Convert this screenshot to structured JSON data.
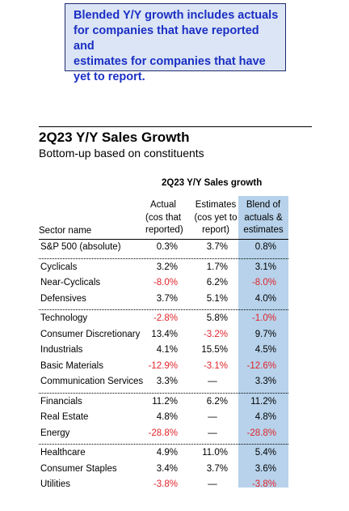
{
  "callout": {
    "lines": [
      "Blended Y/Y growth includes actuals",
      "for companies that have reported and",
      "estimates for companies that have",
      "yet to report."
    ]
  },
  "title": "2Q23 Y/Y Sales Growth",
  "subtitle": "Bottom-up based on constituents",
  "table": {
    "title": "2Q23 Y/Y Sales growth",
    "headers": {
      "sector": "Sector name",
      "actual": [
        "Actual",
        "(cos that",
        "reported)"
      ],
      "estimates": [
        "Estimates",
        "(cos yet to",
        "report)"
      ],
      "blend": [
        "Blend of",
        "actuals &",
        "estimates"
      ]
    },
    "groups": [
      [
        {
          "name": "S&P 500 (absolute)",
          "actual": "0.3%",
          "estimates": "3.7%",
          "blend": "0.8%"
        }
      ],
      [
        {
          "name": "Cyclicals",
          "actual": "3.2%",
          "estimates": "1.7%",
          "blend": "3.1%"
        },
        {
          "name": "Near-Cyclicals",
          "actual": "-8.0%",
          "estimates": "6.2%",
          "blend": "-8.0%"
        },
        {
          "name": "Defensives",
          "actual": "3.7%",
          "estimates": "5.1%",
          "blend": "4.0%"
        }
      ],
      [
        {
          "name": "Technology",
          "actual": "-2.8%",
          "estimates": "5.8%",
          "blend": "-1.0%"
        },
        {
          "name": "Consumer Discretionary",
          "actual": "13.4%",
          "estimates": "-3.2%",
          "blend": "9.7%"
        },
        {
          "name": "Industrials",
          "actual": "4.1%",
          "estimates": "15.5%",
          "blend": "4.5%"
        },
        {
          "name": "Basic Materials",
          "actual": "-12.9%",
          "estimates": "-3.1%",
          "blend": "-12.6%"
        },
        {
          "name": "Communication Services",
          "actual": "3.3%",
          "estimates": "—",
          "blend": "3.3%"
        }
      ],
      [
        {
          "name": "Financials",
          "actual": "11.2%",
          "estimates": "6.2%",
          "blend": "11.2%"
        },
        {
          "name": "Real Estate",
          "actual": "4.8%",
          "estimates": "—",
          "blend": "4.8%"
        },
        {
          "name": "Energy",
          "actual": "-28.8%",
          "estimates": "—",
          "blend": "-28.8%"
        }
      ],
      [
        {
          "name": "Healthcare",
          "actual": "4.9%",
          "estimates": "11.0%",
          "blend": "5.4%"
        },
        {
          "name": "Consumer Staples",
          "actual": "3.4%",
          "estimates": "3.7%",
          "blend": "3.6%"
        },
        {
          "name": "Utilities",
          "actual": "-3.8%",
          "estimates": "—",
          "blend": "-3.8%"
        }
      ]
    ]
  },
  "colors": {
    "callout_text": "#1b2fc4",
    "callout_bg": "#dbe5f5",
    "blend_column_bg": "#b7d2ea",
    "negative": "#e0242b"
  }
}
